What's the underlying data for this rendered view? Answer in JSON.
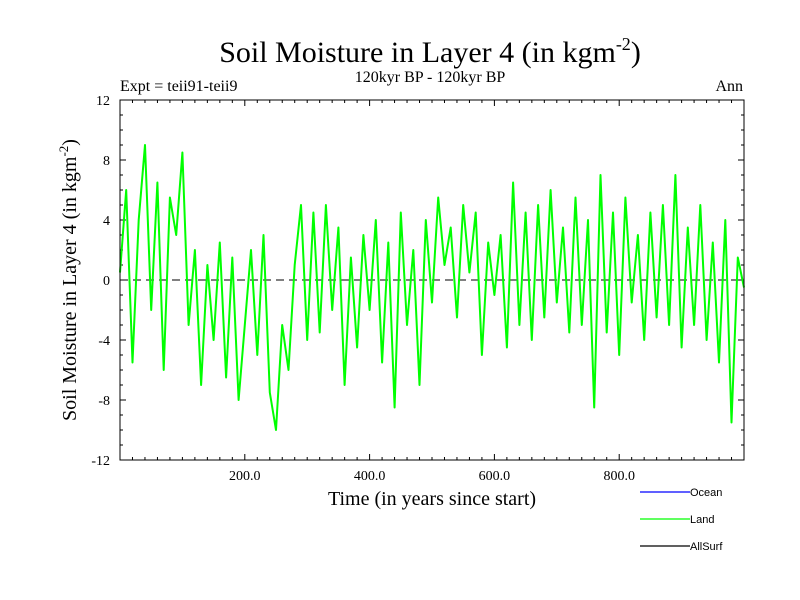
{
  "chart_data": {
    "type": "line",
    "title": "Soil Moisture in Layer 4 (in kgm",
    "title_sup": "-2",
    "title_close": ")",
    "subtitle": "120kyr BP - 120kyr BP",
    "left_label": "Expt = teii91-teii9",
    "right_label": "Ann",
    "xlabel": "Time (in years since start)",
    "ylabel": "Soil Moisture in Layer 4 (in kgm",
    "ylabel_sup": "-2",
    "ylabel_close": ")",
    "xlim": [
      0,
      1000
    ],
    "ylim": [
      -12,
      12
    ],
    "xticks": [
      200,
      400,
      600,
      800
    ],
    "xtick_labels": [
      "200.0",
      "400.0",
      "600.0",
      "800.0"
    ],
    "yticks": [
      -12,
      -8,
      -4,
      0,
      4,
      8,
      12
    ],
    "ytick_labels": [
      "-12",
      "-8",
      "-4",
      "0",
      "4",
      "8",
      "12"
    ],
    "zero_line": true,
    "grid": false,
    "legend_position": "bottom-right",
    "series": [
      {
        "name": "Ocean",
        "color": "#0000ff",
        "x": [],
        "y": []
      },
      {
        "name": "Land",
        "color": "#00ff00",
        "x": [
          0,
          10,
          20,
          30,
          40,
          50,
          60,
          70,
          80,
          90,
          100,
          110,
          120,
          130,
          140,
          150,
          160,
          170,
          180,
          190,
          200,
          210,
          220,
          230,
          240,
          250,
          260,
          270,
          280,
          290,
          300,
          310,
          320,
          330,
          340,
          350,
          360,
          370,
          380,
          390,
          400,
          410,
          420,
          430,
          440,
          450,
          460,
          470,
          480,
          490,
          500,
          510,
          520,
          530,
          540,
          550,
          560,
          570,
          580,
          590,
          600,
          610,
          620,
          630,
          640,
          650,
          660,
          670,
          680,
          690,
          700,
          710,
          720,
          730,
          740,
          750,
          760,
          770,
          780,
          790,
          800,
          810,
          820,
          830,
          840,
          850,
          860,
          870,
          880,
          890,
          900,
          910,
          920,
          930,
          940,
          950,
          960,
          970,
          980,
          990,
          1000
        ],
        "y": [
          0.5,
          6.0,
          -5.5,
          4.0,
          9.0,
          -2.0,
          6.5,
          -6.0,
          5.5,
          3.0,
          8.5,
          -3.0,
          2.0,
          -7.0,
          1.0,
          -4.0,
          2.5,
          -6.5,
          1.5,
          -8.0,
          -3.0,
          2.0,
          -5.0,
          3.0,
          -7.5,
          -10.0,
          -3.0,
          -6.0,
          1.0,
          5.0,
          -4.0,
          4.5,
          -3.5,
          5.0,
          -2.0,
          3.5,
          -7.0,
          1.5,
          -4.5,
          3.0,
          -2.0,
          4.0,
          -5.5,
          2.5,
          -8.5,
          4.5,
          -3.0,
          2.0,
          -7.0,
          4.0,
          -1.5,
          5.5,
          1.0,
          3.5,
          -2.5,
          5.0,
          0.5,
          4.5,
          -5.0,
          2.5,
          -1.0,
          3.0,
          -4.5,
          6.5,
          -3.0,
          4.5,
          -4.0,
          5.0,
          -2.5,
          6.0,
          -1.5,
          3.5,
          -3.5,
          5.5,
          -3.0,
          4.0,
          -8.5,
          7.0,
          -3.5,
          4.5,
          -5.0,
          5.5,
          -1.5,
          3.0,
          -4.0,
          4.5,
          -2.5,
          5.0,
          -3.0,
          7.0,
          -4.5,
          3.5,
          -3.0,
          5.0,
          -4.0,
          2.5,
          -5.5,
          4.0,
          -9.5,
          1.5,
          -0.5
        ]
      },
      {
        "name": "AllSurf",
        "color": "#000000",
        "x": [],
        "y": []
      }
    ]
  }
}
